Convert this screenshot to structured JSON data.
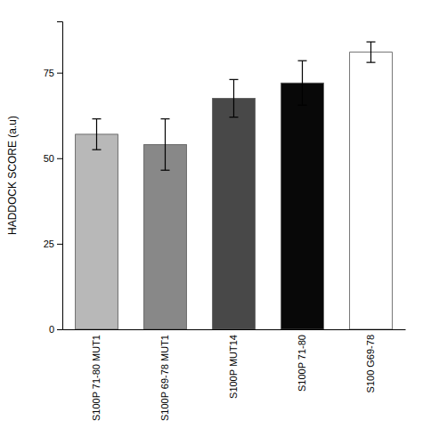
{
  "chart_data": {
    "type": "bar",
    "categories": [
      "S100P 71-80 MUT1",
      "S100P 69-78 MUT1",
      "S100P MUT14",
      "S100P 71-80",
      "S100 G69-78"
    ],
    "values": [
      57.0,
      54.0,
      67.5,
      72.0,
      81.0
    ],
    "errors": [
      4.5,
      7.5,
      5.5,
      6.5,
      3.0
    ],
    "colors": [
      "#b8b8b8",
      "#888888",
      "#484848",
      "#080808",
      "#ffffff"
    ],
    "ylabel": "HADDOCK SCORE (a.u)",
    "ylim": [
      0,
      90
    ],
    "yticks": [
      0,
      25,
      50,
      75
    ],
    "grid": false
  }
}
